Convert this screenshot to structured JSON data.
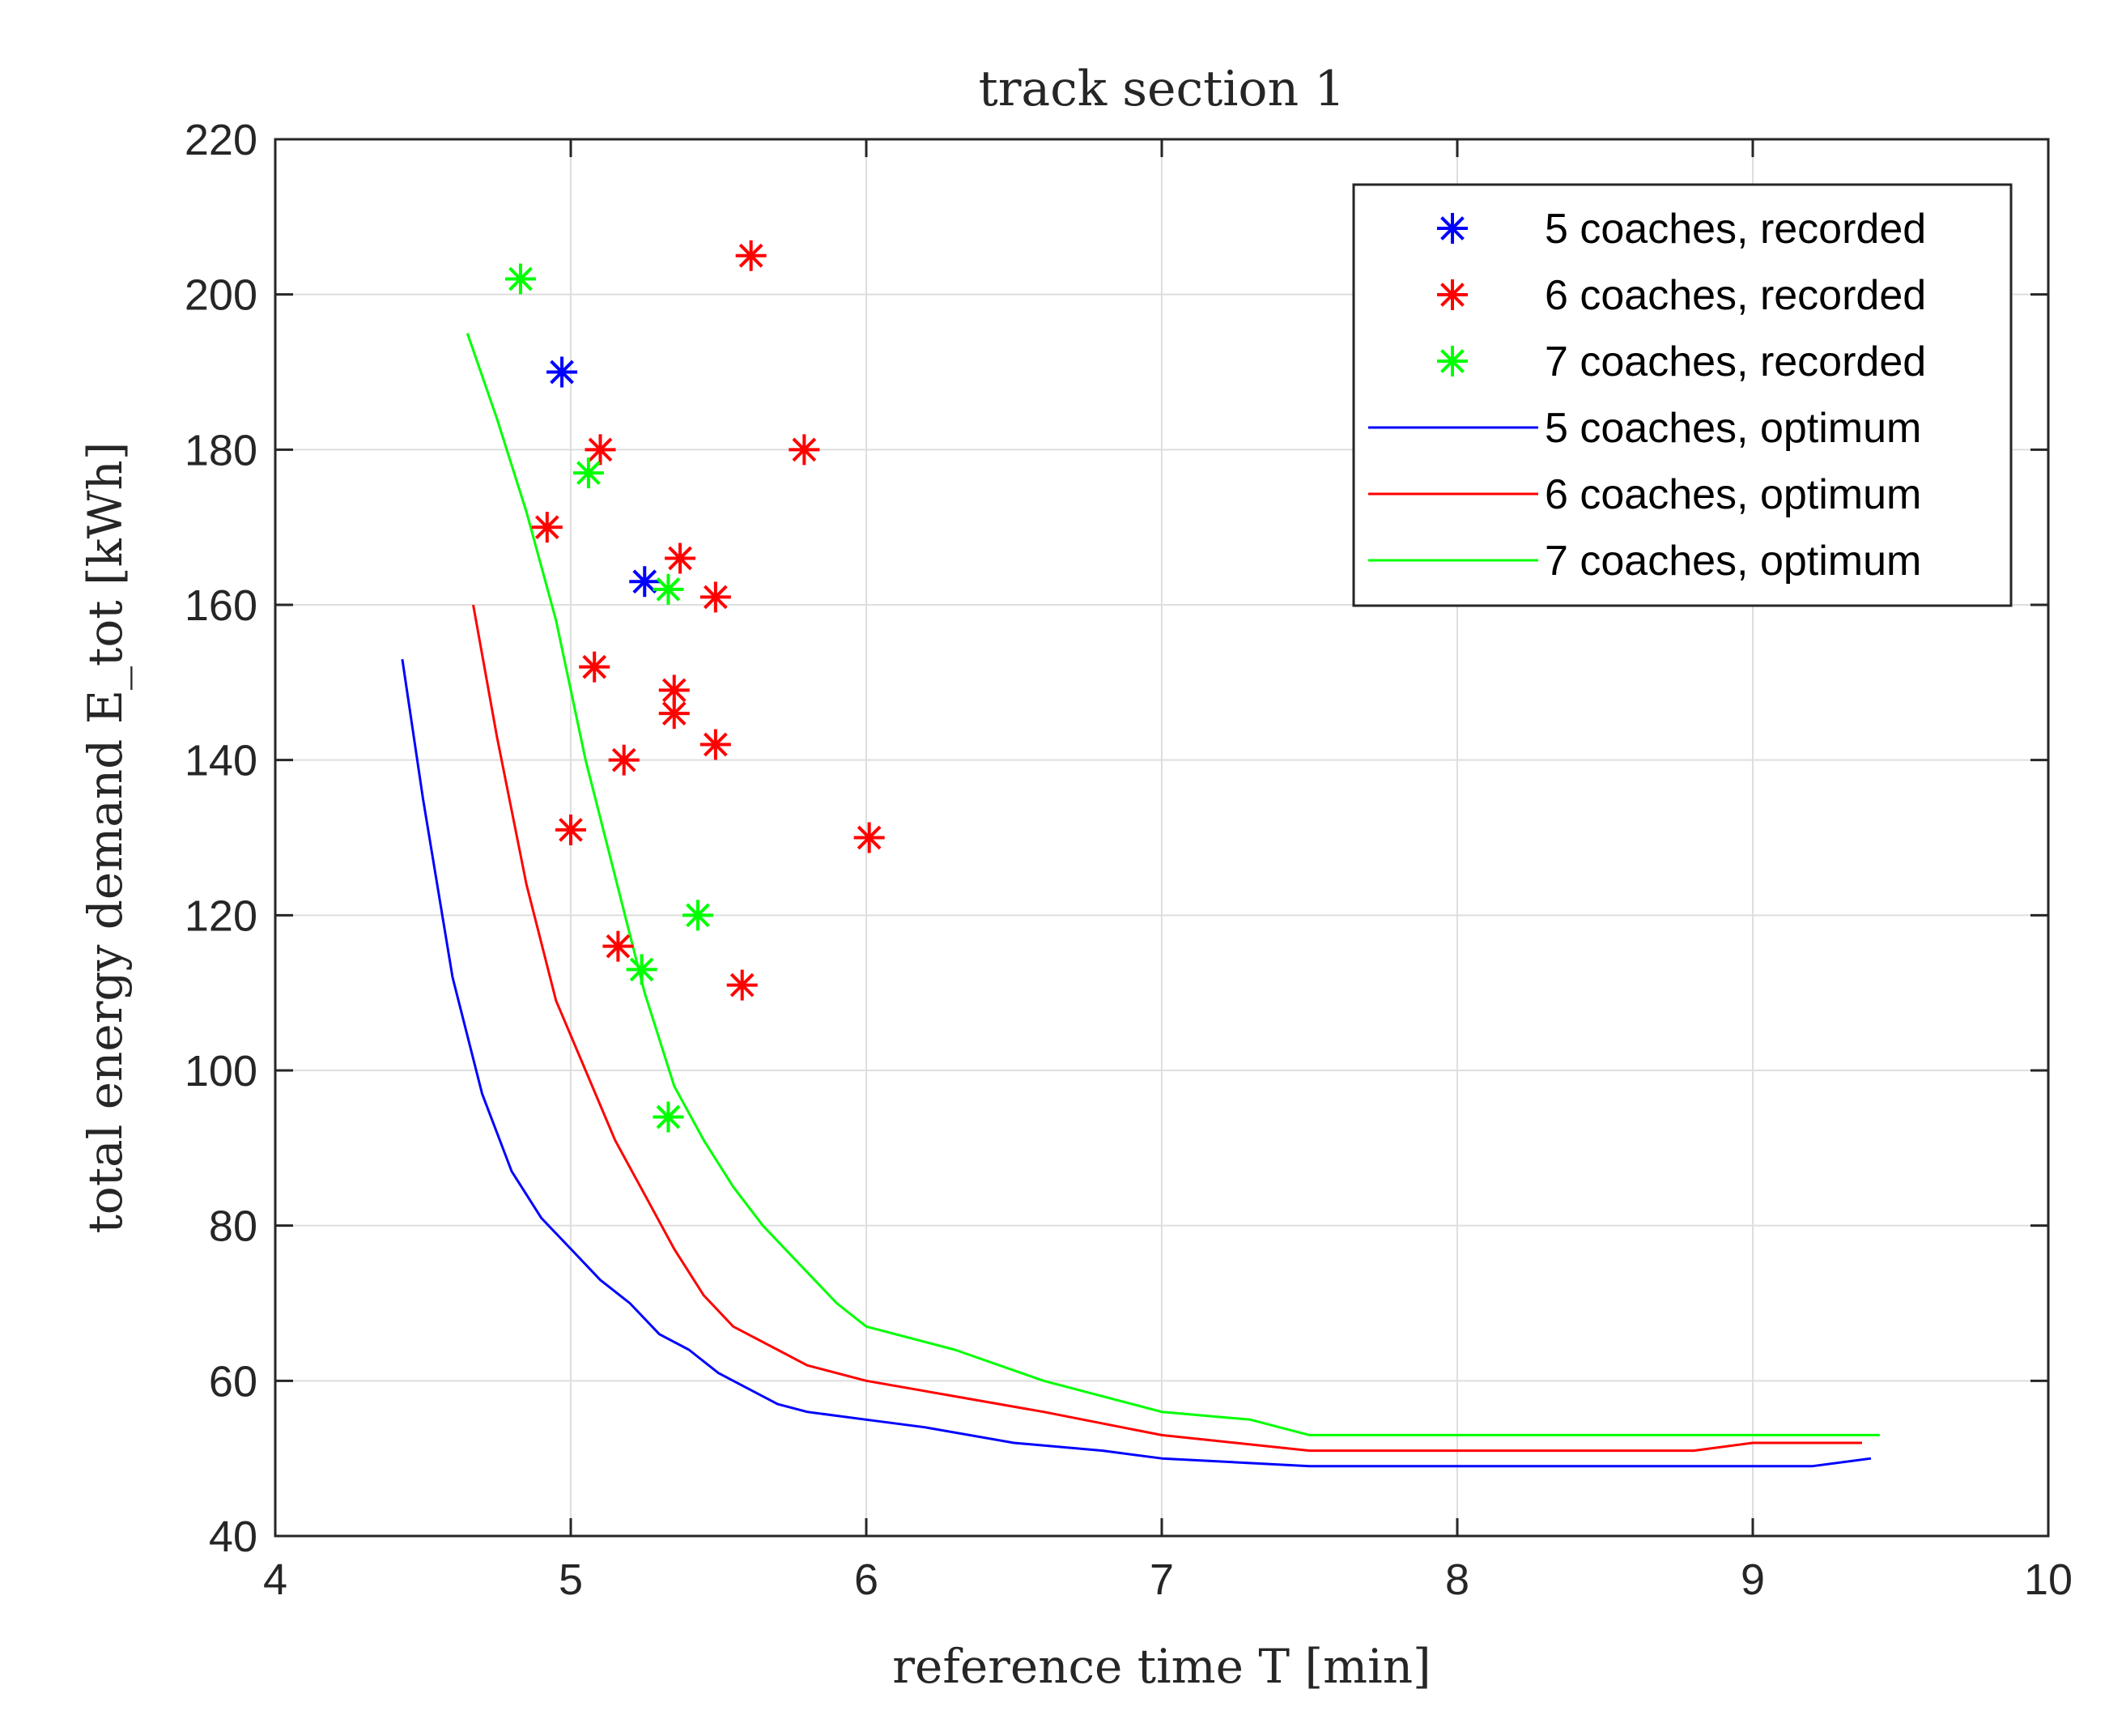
{
  "chart_data": {
    "type": "scatter",
    "title": "track section 1",
    "xlabel": "reference time T [min]",
    "ylabel": "total energy demand E_tot [kWh]",
    "xlim": [
      4,
      10
    ],
    "ylim": [
      40,
      220
    ],
    "xticks": [
      4,
      5,
      6,
      7,
      8,
      9,
      10
    ],
    "yticks": [
      40,
      60,
      80,
      100,
      120,
      140,
      160,
      180,
      200,
      220
    ],
    "grid": true,
    "legend_position": "top-right",
    "series": [
      {
        "name": "5 coaches, recorded",
        "kind": "scatter",
        "color": "#0000ff",
        "points": [
          [
            4.97,
            190
          ],
          [
            5.25,
            163
          ]
        ]
      },
      {
        "name": "6 coaches, recorded",
        "kind": "scatter",
        "color": "#ff0000",
        "points": [
          [
            5.61,
            205
          ],
          [
            5.79,
            180
          ],
          [
            5.1,
            180
          ],
          [
            4.92,
            170
          ],
          [
            5.37,
            166
          ],
          [
            5.49,
            161
          ],
          [
            5.08,
            152
          ],
          [
            5.35,
            149
          ],
          [
            5.35,
            146
          ],
          [
            5.49,
            142
          ],
          [
            5.18,
            140
          ],
          [
            6.01,
            130
          ],
          [
            5.0,
            131
          ],
          [
            5.16,
            116
          ],
          [
            5.58,
            111
          ]
        ]
      },
      {
        "name": "7 coaches, recorded",
        "kind": "scatter",
        "color": "#00ff00",
        "points": [
          [
            4.83,
            202
          ],
          [
            5.06,
            177
          ],
          [
            5.33,
            162
          ],
          [
            5.43,
            120
          ],
          [
            5.24,
            113
          ],
          [
            5.33,
            94
          ]
        ]
      },
      {
        "name": "5 coaches, optimum",
        "kind": "line",
        "color": "#0000ff",
        "points": [
          [
            4.43,
            153
          ],
          [
            4.5,
            135
          ],
          [
            4.6,
            112
          ],
          [
            4.7,
            97
          ],
          [
            4.8,
            87
          ],
          [
            4.9,
            81
          ],
          [
            5.0,
            77
          ],
          [
            5.1,
            73
          ],
          [
            5.2,
            70
          ],
          [
            5.3,
            66
          ],
          [
            5.4,
            64
          ],
          [
            5.5,
            61
          ],
          [
            5.6,
            59
          ],
          [
            5.7,
            57
          ],
          [
            5.8,
            56
          ],
          [
            6.0,
            55
          ],
          [
            6.2,
            54
          ],
          [
            6.5,
            52
          ],
          [
            6.8,
            51
          ],
          [
            7.0,
            50
          ],
          [
            7.5,
            49
          ],
          [
            8.0,
            49
          ],
          [
            8.5,
            49
          ],
          [
            9.0,
            49
          ],
          [
            9.2,
            49
          ],
          [
            9.4,
            50
          ]
        ]
      },
      {
        "name": "6 coaches, optimum",
        "kind": "line",
        "color": "#ff0000",
        "points": [
          [
            4.67,
            160
          ],
          [
            4.75,
            143
          ],
          [
            4.85,
            124
          ],
          [
            4.95,
            109
          ],
          [
            5.05,
            100
          ],
          [
            5.15,
            91
          ],
          [
            5.25,
            84
          ],
          [
            5.35,
            77
          ],
          [
            5.45,
            71
          ],
          [
            5.55,
            67
          ],
          [
            5.7,
            64
          ],
          [
            5.8,
            62
          ],
          [
            6.0,
            60
          ],
          [
            6.3,
            58
          ],
          [
            6.6,
            56
          ],
          [
            7.0,
            53
          ],
          [
            7.5,
            51
          ],
          [
            8.0,
            51
          ],
          [
            8.5,
            51
          ],
          [
            8.8,
            51
          ],
          [
            9.0,
            52
          ],
          [
            9.2,
            52
          ],
          [
            9.37,
            52
          ]
        ]
      },
      {
        "name": "7 coaches, optimum",
        "kind": "line",
        "color": "#00ff00",
        "points": [
          [
            4.65,
            195
          ],
          [
            4.75,
            184
          ],
          [
            4.85,
            172
          ],
          [
            4.95,
            158
          ],
          [
            5.05,
            140
          ],
          [
            5.15,
            125
          ],
          [
            5.25,
            110
          ],
          [
            5.35,
            98
          ],
          [
            5.45,
            91
          ],
          [
            5.55,
            85
          ],
          [
            5.65,
            80
          ],
          [
            5.8,
            74
          ],
          [
            5.9,
            70
          ],
          [
            6.0,
            67
          ],
          [
            6.3,
            64
          ],
          [
            6.6,
            60
          ],
          [
            7.0,
            56
          ],
          [
            7.3,
            55
          ],
          [
            7.5,
            53
          ],
          [
            8.0,
            53
          ],
          [
            8.5,
            53
          ],
          [
            9.0,
            53
          ],
          [
            9.2,
            53
          ],
          [
            9.43,
            53
          ]
        ]
      }
    ]
  }
}
